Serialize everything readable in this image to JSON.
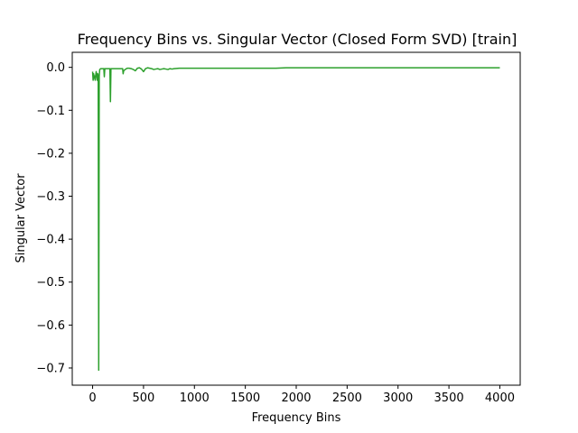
{
  "chart_data": {
    "type": "line",
    "title": "Frequency Bins vs. Singular Vector (Closed Form SVD) [train]",
    "xlabel": "Frequency Bins",
    "ylabel": "Singular Vector",
    "xlim": [
      -200,
      4200
    ],
    "ylim": [
      -0.74,
      0.035
    ],
    "xticks": [
      0,
      500,
      1000,
      1500,
      2000,
      2500,
      3000,
      3500,
      4000
    ],
    "xtick_labels": [
      "0",
      "500",
      "1000",
      "1500",
      "2000",
      "2500",
      "3000",
      "3500",
      "4000"
    ],
    "yticks": [
      0.0,
      -0.1,
      -0.2,
      -0.3,
      -0.4,
      -0.5,
      -0.6,
      -0.7
    ],
    "ytick_labels": [
      "0.0",
      "−0.1",
      "−0.2",
      "−0.3",
      "−0.4",
      "−0.5",
      "−0.6",
      "−0.7"
    ],
    "grid": false,
    "series": [
      {
        "color": "#2ca02c",
        "x": [
          0,
          5,
          10,
          15,
          20,
          25,
          30,
          35,
          40,
          45,
          50,
          55,
          60,
          65,
          70,
          80,
          90,
          100,
          110,
          115,
          120,
          130,
          140,
          160,
          170,
          175,
          180,
          190,
          200,
          230,
          260,
          280,
          295,
          300,
          305,
          320,
          340,
          360,
          380,
          400,
          420,
          440,
          460,
          480,
          500,
          520,
          540,
          560,
          580,
          600,
          620,
          640,
          660,
          680,
          700,
          720,
          740,
          760,
          780,
          800,
          850,
          900,
          1000,
          1100,
          1200,
          1300,
          1500,
          1700,
          1800,
          1900,
          2000,
          2500,
          3000,
          3500,
          4000
        ],
        "y": [
          -0.01,
          -0.03,
          -0.015,
          -0.025,
          -0.02,
          -0.03,
          -0.02,
          -0.01,
          -0.015,
          -0.03,
          -0.015,
          -0.02,
          -0.705,
          -0.02,
          -0.005,
          -0.003,
          -0.003,
          -0.003,
          -0.003,
          -0.022,
          -0.003,
          -0.003,
          -0.003,
          -0.003,
          -0.003,
          -0.08,
          -0.003,
          -0.003,
          -0.003,
          -0.003,
          -0.003,
          -0.003,
          -0.003,
          -0.015,
          -0.008,
          -0.005,
          -0.002,
          -0.002,
          -0.003,
          -0.005,
          -0.008,
          -0.002,
          -0.001,
          -0.004,
          -0.01,
          -0.003,
          -0.001,
          -0.002,
          -0.003,
          -0.005,
          -0.004,
          -0.003,
          -0.005,
          -0.004,
          -0.003,
          -0.004,
          -0.005,
          -0.003,
          -0.004,
          -0.003,
          -0.002,
          -0.002,
          -0.002,
          -0.002,
          -0.002,
          -0.002,
          -0.002,
          -0.002,
          -0.002,
          -0.001,
          -0.001,
          -0.001,
          -0.001,
          -0.001,
          -0.001
        ]
      }
    ]
  }
}
